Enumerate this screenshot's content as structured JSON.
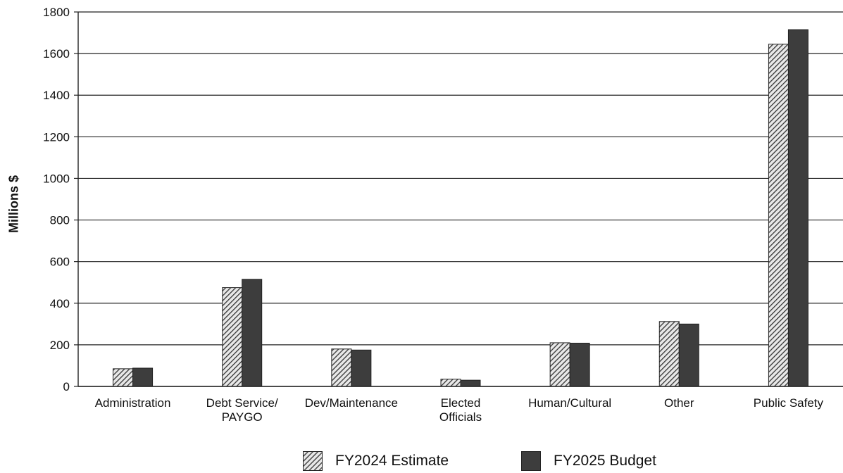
{
  "chart_data": {
    "type": "bar",
    "title": "",
    "xlabel": "",
    "ylabel": "Millions $",
    "ylim": [
      0,
      1800
    ],
    "yticks": [
      "0",
      "200",
      "400",
      "600",
      "800",
      "1000",
      "1200",
      "1400",
      "1600",
      "1800"
    ],
    "grid": true,
    "legend_position": "bottom",
    "categories": [
      [
        "Administration"
      ],
      [
        "Debt Service/",
        "PAYGO"
      ],
      [
        "Dev/Maintenance"
      ],
      [
        "Elected",
        "Officials"
      ],
      [
        "Human/Cultural"
      ],
      [
        "Other"
      ],
      [
        "Public Safety"
      ]
    ],
    "series": [
      {
        "name": "FY2024 Estimate",
        "pattern": "diagonal-hatch",
        "color": "#555555",
        "values": [
          85,
          475,
          180,
          35,
          210,
          312,
          1645
        ]
      },
      {
        "name": "FY2025 Budget",
        "pattern": "solid",
        "color": "#3d3d3d",
        "values": [
          88,
          515,
          175,
          30,
          208,
          300,
          1715
        ]
      }
    ]
  }
}
